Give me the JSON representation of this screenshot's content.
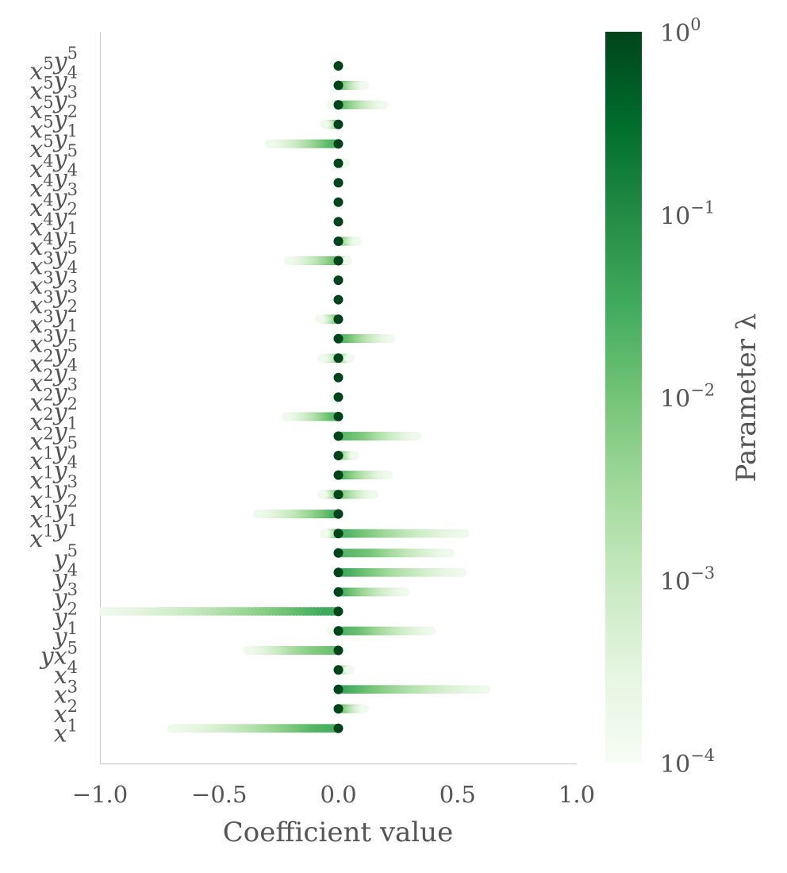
{
  "chart_data": {
    "type": "scatter",
    "title": "",
    "xlabel": "Coefficient value",
    "ylabel": "",
    "xlim": [
      -1.0,
      1.0
    ],
    "xticks": [
      "−1.0",
      "−0.5",
      "0.0",
      "0.5",
      "1.0"
    ],
    "xtick_values": [
      -1.0,
      -0.5,
      0.0,
      0.5,
      1.0
    ],
    "grid": false,
    "colormap": "Greens",
    "colormap_stops": [
      "#f7fcf5",
      "#e5f5e0",
      "#c7e9c0",
      "#a1d99b",
      "#74c476",
      "#41ab5d",
      "#238b45",
      "#006d2c",
      "#00441b"
    ],
    "colorbar": {
      "label": "Parameter λ",
      "scale": "log",
      "range": [
        0.0001,
        1
      ],
      "ticks": [
        {
          "base": "10",
          "exp": "0",
          "value": 1
        },
        {
          "base": "10",
          "exp": "−1",
          "value": 0.1
        },
        {
          "base": "10",
          "exp": "−2",
          "value": 0.01
        },
        {
          "base": "10",
          "exp": "−3",
          "value": 0.001
        },
        {
          "base": "10",
          "exp": "−4",
          "value": 0.0001
        }
      ]
    },
    "rows": [
      {
        "label": [
          [
            "x",
            "5"
          ],
          [
            "y",
            "5"
          ]
        ],
        "min": 0.0,
        "max": 0.0,
        "peak": 0.0
      },
      {
        "label": [
          [
            "x",
            "5"
          ],
          [
            "y",
            "4"
          ]
        ],
        "min": 0.0,
        "max": 0.11,
        "peak": 0.02
      },
      {
        "label": [
          [
            "x",
            "5"
          ],
          [
            "y",
            "3"
          ]
        ],
        "min": -0.03,
        "max": 0.19,
        "peak": 0.0
      },
      {
        "label": [
          [
            "x",
            "5"
          ],
          [
            "y",
            "2"
          ]
        ],
        "min": -0.06,
        "max": 0.0,
        "peak": -0.04
      },
      {
        "label": [
          [
            "x",
            "5"
          ],
          [
            "y",
            "1"
          ]
        ],
        "min": -0.29,
        "max": 0.0,
        "peak": -0.06
      },
      {
        "label": [
          [
            "x",
            "4"
          ],
          [
            "y",
            "5"
          ]
        ],
        "min": 0.0,
        "max": 0.03,
        "peak": 0.02
      },
      {
        "label": [
          [
            "x",
            "4"
          ],
          [
            "y",
            "4"
          ]
        ],
        "min": 0.0,
        "max": 0.0,
        "peak": 0.0
      },
      {
        "label": [
          [
            "x",
            "4"
          ],
          [
            "y",
            "3"
          ]
        ],
        "min": 0.0,
        "max": 0.0,
        "peak": 0.0
      },
      {
        "label": [
          [
            "x",
            "4"
          ],
          [
            "y",
            "2"
          ]
        ],
        "min": 0.0,
        "max": 0.0,
        "peak": 0.0
      },
      {
        "label": [
          [
            "x",
            "4"
          ],
          [
            "y",
            "1"
          ]
        ],
        "min": 0.0,
        "max": 0.08,
        "peak": 0.01
      },
      {
        "label": [
          [
            "x",
            "3"
          ],
          [
            "y",
            "5"
          ]
        ],
        "min": -0.21,
        "max": 0.04,
        "peak": 0.03
      },
      {
        "label": [
          [
            "x",
            "3"
          ],
          [
            "y",
            "4"
          ]
        ],
        "min": 0.0,
        "max": 0.0,
        "peak": 0.0
      },
      {
        "label": [
          [
            "x",
            "3"
          ],
          [
            "y",
            "3"
          ]
        ],
        "min": 0.0,
        "max": 0.0,
        "peak": 0.0
      },
      {
        "label": [
          [
            "x",
            "3"
          ],
          [
            "y",
            "2"
          ]
        ],
        "min": -0.08,
        "max": 0.0,
        "peak": -0.02
      },
      {
        "label": [
          [
            "x",
            "3"
          ],
          [
            "y",
            "1"
          ]
        ],
        "min": 0.0,
        "max": 0.22,
        "peak": 0.05
      },
      {
        "label": [
          [
            "x",
            "2"
          ],
          [
            "y",
            "5"
          ]
        ],
        "min": -0.07,
        "max": 0.05,
        "peak": 0.04
      },
      {
        "label": [
          [
            "x",
            "2"
          ],
          [
            "y",
            "4"
          ]
        ],
        "min": 0.0,
        "max": 0.0,
        "peak": 0.0
      },
      {
        "label": [
          [
            "x",
            "2"
          ],
          [
            "y",
            "3"
          ]
        ],
        "min": -0.02,
        "max": 0.0,
        "peak": -0.01
      },
      {
        "label": [
          [
            "x",
            "2"
          ],
          [
            "y",
            "2"
          ]
        ],
        "min": -0.22,
        "max": 0.0,
        "peak": -0.05
      },
      {
        "label": [
          [
            "x",
            "2"
          ],
          [
            "y",
            "1"
          ]
        ],
        "min": 0.0,
        "max": 0.33,
        "peak": 0.12
      },
      {
        "label": [
          [
            "x",
            "1"
          ],
          [
            "y",
            "5"
          ]
        ],
        "min": 0.0,
        "max": 0.07,
        "peak": 0.05
      },
      {
        "label": [
          [
            "x",
            "1"
          ],
          [
            "y",
            "4"
          ]
        ],
        "min": 0.0,
        "max": 0.21,
        "peak": 0.02
      },
      {
        "label": [
          [
            "x",
            "1"
          ],
          [
            "y",
            "3"
          ]
        ],
        "min": -0.07,
        "max": 0.15,
        "peak": -0.04
      },
      {
        "label": [
          [
            "x",
            "1"
          ],
          [
            "y",
            "2"
          ]
        ],
        "min": -0.34,
        "max": 0.0,
        "peak": -0.03
      },
      {
        "label": [
          [
            "x",
            "1"
          ],
          [
            "y",
            "1"
          ]
        ],
        "min": -0.06,
        "max": 0.53,
        "peak": -0.03
      },
      {
        "label": [
          [
            "y",
            "5"
          ]
        ],
        "min": 0.0,
        "max": 0.47,
        "peak": 0.15
      },
      {
        "label": [
          [
            "y",
            "4"
          ]
        ],
        "min": 0.0,
        "max": 0.52,
        "peak": 0.05
      },
      {
        "label": [
          [
            "y",
            "3"
          ]
        ],
        "min": 0.0,
        "max": 0.28,
        "peak": 0.03
      },
      {
        "label": [
          [
            "y",
            "2"
          ]
        ],
        "min": -1.0,
        "max": 0.0,
        "peak": -0.08
      },
      {
        "label": [
          [
            "y",
            "1"
          ]
        ],
        "min": -0.03,
        "max": 0.39,
        "peak": 0.1
      },
      {
        "label": [
          [
            "y",
            ""
          ],
          [
            "x",
            "5"
          ]
        ],
        "min": -0.38,
        "max": 0.0,
        "peak": -0.2
      },
      {
        "label": [
          [
            "x",
            "4"
          ]
        ],
        "min": 0.0,
        "max": 0.05,
        "peak": 0.01
      },
      {
        "label": [
          [
            "x",
            "3"
          ]
        ],
        "min": 0.0,
        "max": 0.62,
        "peak": 0.03
      },
      {
        "label": [
          [
            "x",
            "2"
          ]
        ],
        "min": 0.0,
        "max": 0.11,
        "peak": 0.02
      },
      {
        "label": [
          [
            "x",
            "1"
          ]
        ],
        "min": -0.7,
        "max": 0.0,
        "peak": -0.12
      }
    ]
  }
}
